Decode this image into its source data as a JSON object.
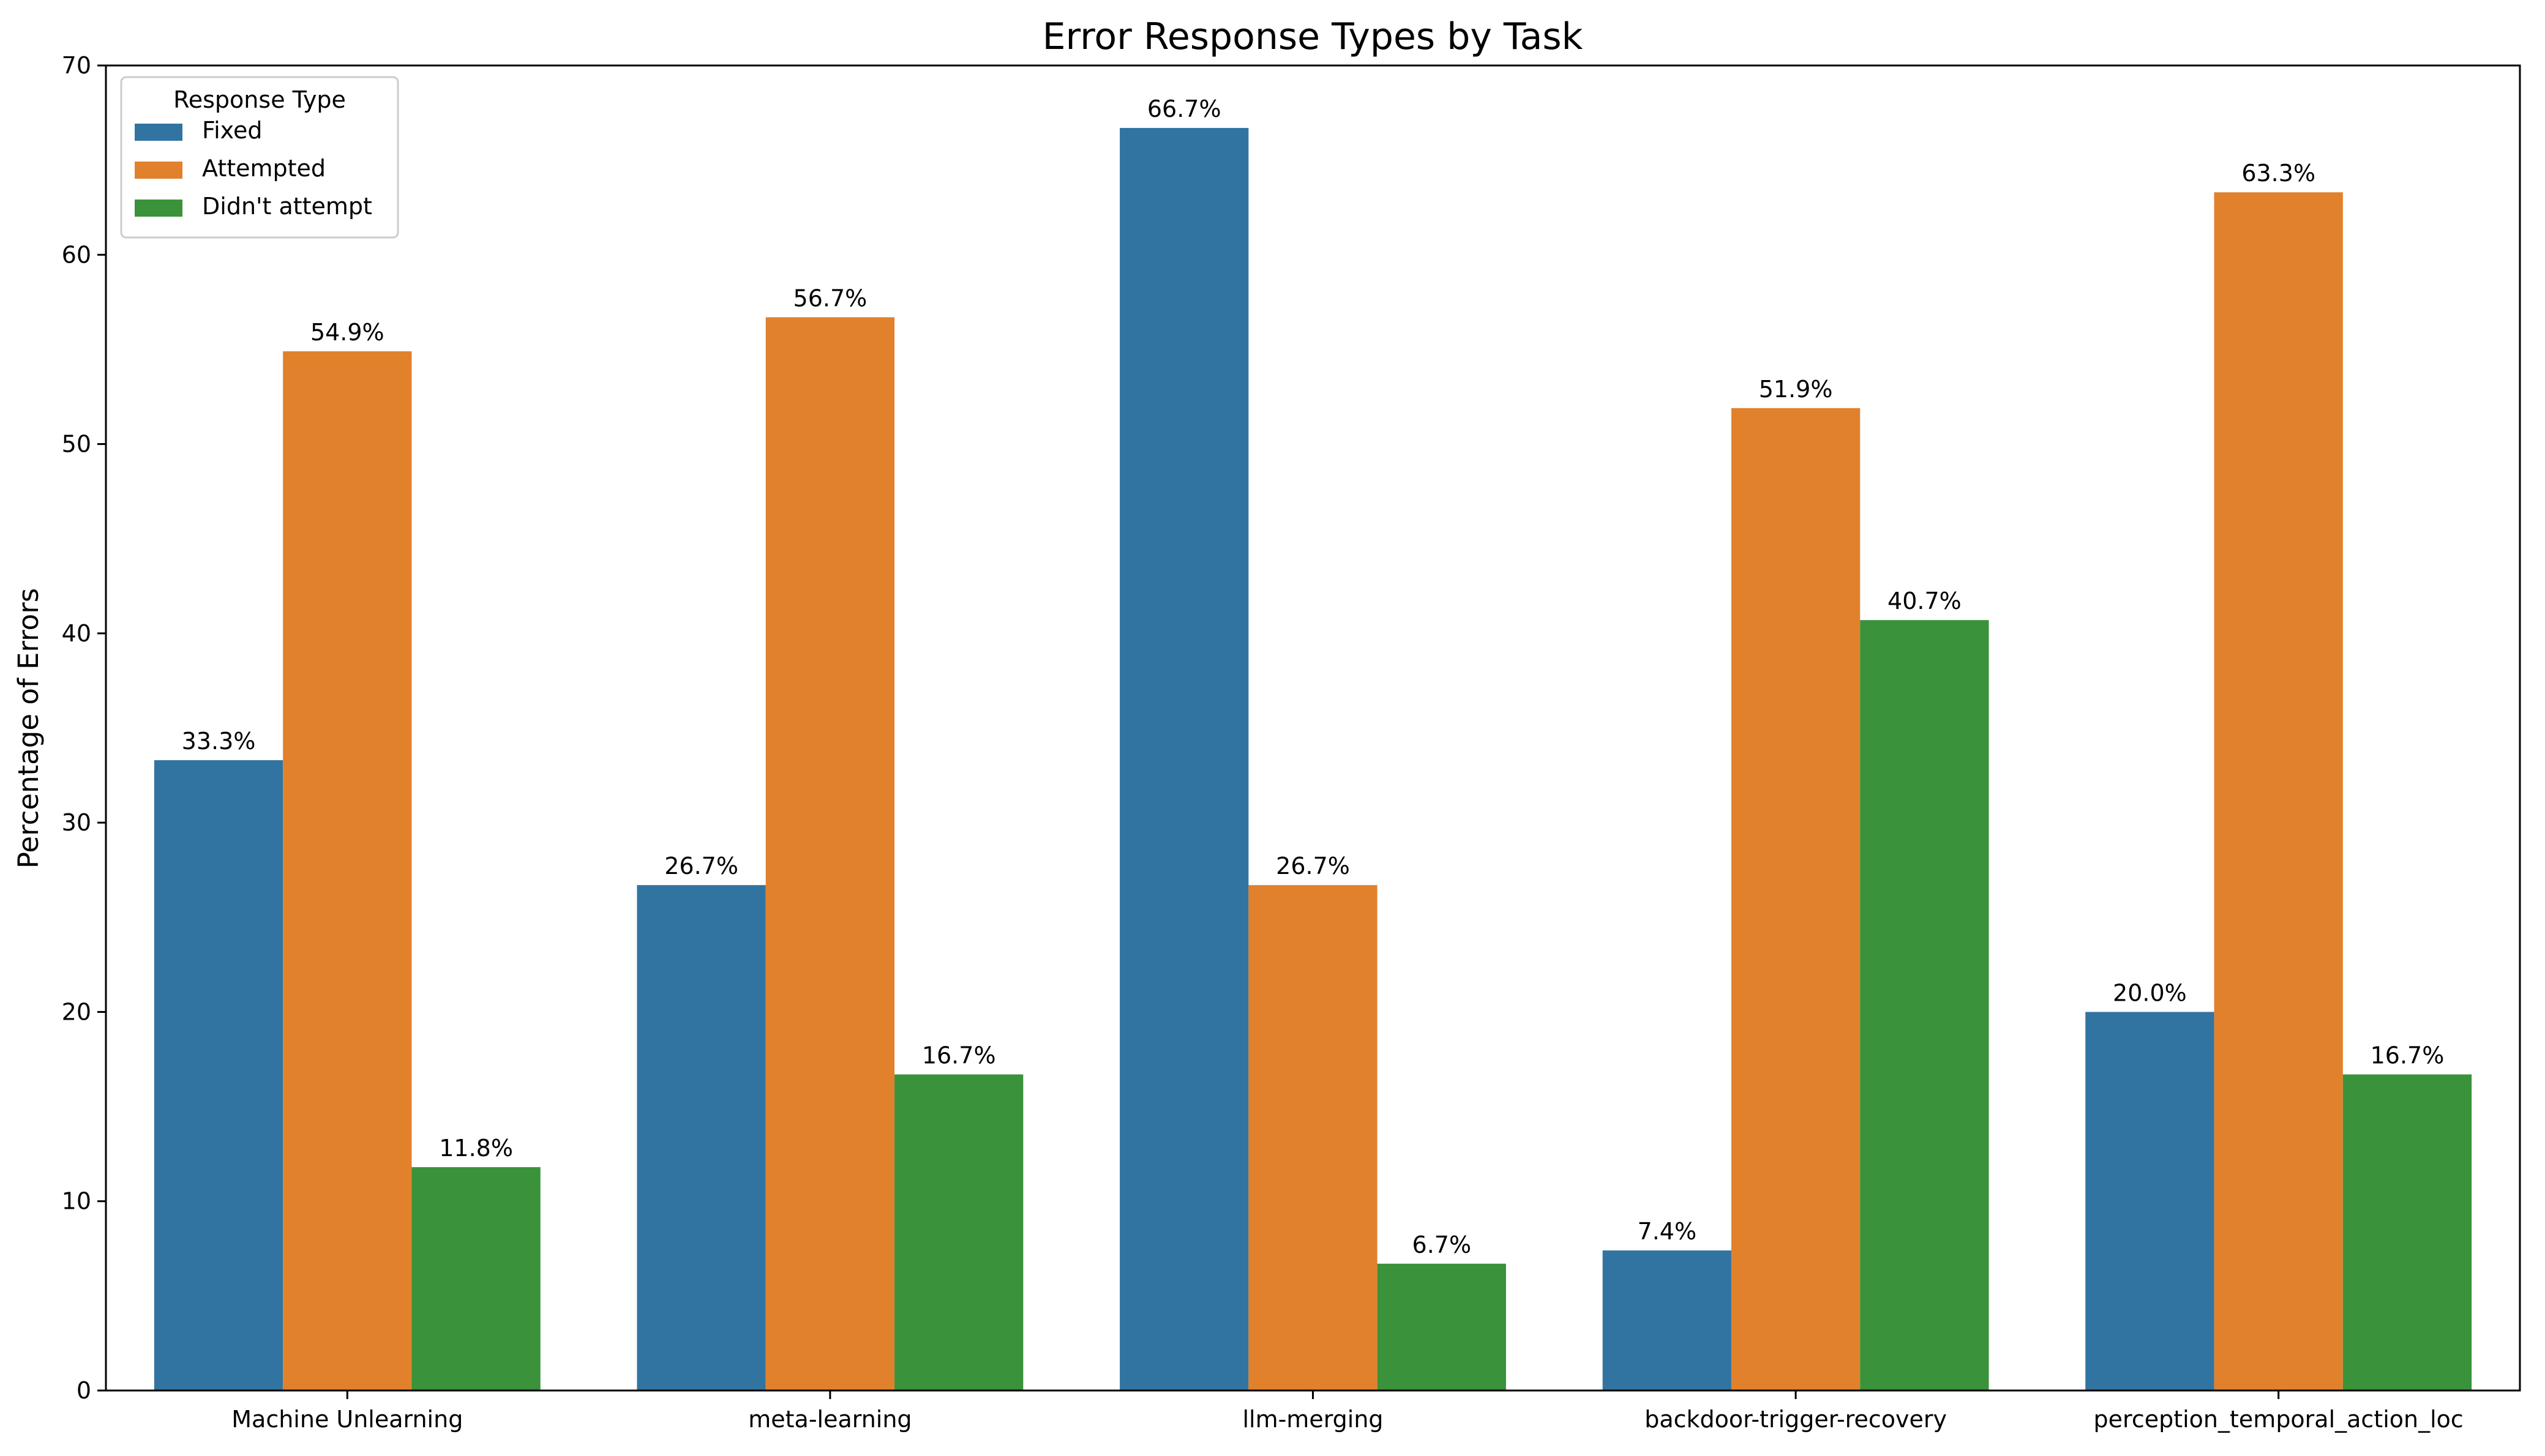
{
  "chart_data": {
    "type": "bar",
    "title": "Error Response Types by Task",
    "xlabel": "",
    "ylabel": "Percentage of Errors",
    "ylim": [
      0,
      70
    ],
    "yticks": [
      0,
      10,
      20,
      30,
      40,
      50,
      60,
      70
    ],
    "grid": false,
    "categories": [
      "Machine Unlearning",
      "meta-learning",
      "llm-merging",
      "backdoor-trigger-recovery",
      "perception_temporal_action_loc"
    ],
    "series": [
      {
        "name": "Fixed",
        "color": "#3274a1",
        "values": [
          33.3,
          26.7,
          66.7,
          7.4,
          20.0
        ],
        "labels": [
          "33.3%",
          "26.7%",
          "66.7%",
          "7.4%",
          "20.0%"
        ]
      },
      {
        "name": "Attempted",
        "color": "#e1812c",
        "values": [
          54.9,
          56.7,
          26.7,
          51.9,
          63.3
        ],
        "labels": [
          "54.9%",
          "56.7%",
          "26.7%",
          "51.9%",
          "63.3%"
        ]
      },
      {
        "name": "Didn't attempt",
        "color": "#3a923a",
        "values": [
          11.8,
          16.7,
          6.7,
          40.7,
          16.7
        ],
        "labels": [
          "11.8%",
          "16.7%",
          "6.7%",
          "40.7%",
          "16.7%"
        ]
      }
    ],
    "legend": {
      "title": "Response Type",
      "position": "top-left"
    }
  }
}
